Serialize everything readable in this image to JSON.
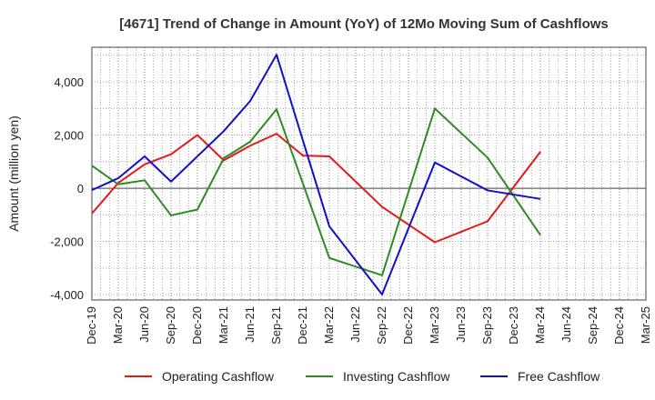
{
  "chart_data": {
    "type": "line",
    "title": "[4671]  Trend of Change in Amount (YoY) of 12Mo Moving Sum of Cashflows",
    "xlabel": "",
    "ylabel": "Amount (million yen)",
    "ylim": [
      -4200,
      5300
    ],
    "yticks": [
      -4000,
      -2000,
      0,
      2000,
      4000
    ],
    "ytick_labels": [
      "-4,000",
      "-2,000",
      "0",
      "2,000",
      "4,000"
    ],
    "categories": [
      "Dec-19",
      "Mar-20",
      "Jun-20",
      "Sep-20",
      "Dec-20",
      "Mar-21",
      "Jun-21",
      "Sep-21",
      "Dec-21",
      "Mar-22",
      "Jun-22",
      "Sep-22",
      "Dec-22",
      "Mar-23",
      "Jun-23",
      "Sep-23",
      "Dec-23",
      "Mar-24",
      "Jun-24",
      "Sep-24",
      "Dec-24",
      "Mar-25"
    ],
    "grid": true,
    "legend_position": "bottom",
    "series": [
      {
        "name": "Operating Cashflow",
        "color": "#e31a1c",
        "values": [
          -950,
          200,
          900,
          1280,
          2000,
          1050,
          1600,
          2050,
          1230,
          1200,
          null,
          -700,
          null,
          -2030,
          null,
          -1240,
          null,
          1370,
          null,
          null,
          null,
          null
        ]
      },
      {
        "name": "Investing Cashflow",
        "color": "#2e8b22",
        "values": [
          850,
          150,
          300,
          -1020,
          -800,
          1130,
          1750,
          2970,
          null,
          -2620,
          null,
          -3270,
          null,
          3000,
          null,
          1150,
          null,
          -1760,
          null,
          null,
          null,
          null
        ]
      },
      {
        "name": "Free Cashflow",
        "color": "#1010c8",
        "values": [
          -70,
          380,
          1200,
          250,
          null,
          2150,
          3280,
          5020,
          null,
          -1430,
          null,
          -3990,
          null,
          970,
          null,
          -80,
          null,
          -400,
          null,
          null,
          null,
          null
        ]
      }
    ]
  }
}
